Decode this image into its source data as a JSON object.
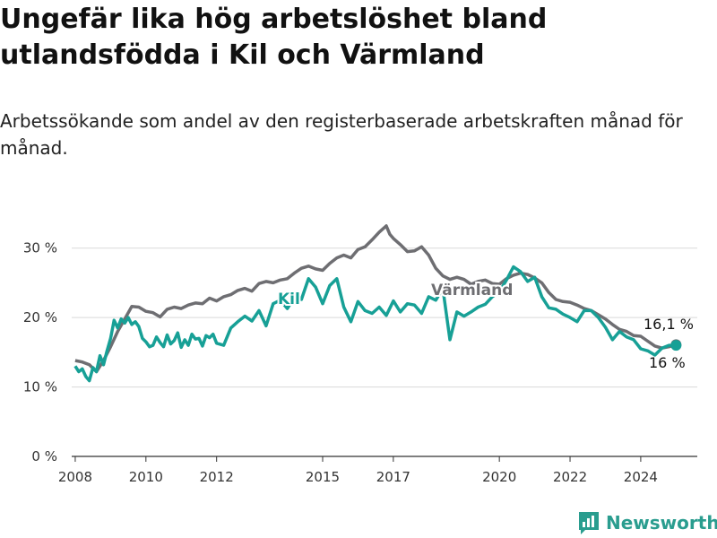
{
  "title": "Ungefär lika hög arbetslöshet bland utlandsfödda i Kil och Värmland",
  "subtitle": "Arbetssökande som andel av den registerbaserade arbetskraften månad för månad.",
  "brand": "Newsworthy",
  "colors": {
    "kil": "#17a096",
    "varmland": "#6e6e72",
    "grid": "#d9d9d9",
    "axis": "#333333"
  },
  "chart_data": {
    "type": "line",
    "title": "Ungefär lika hög arbetslöshet bland utlandsfödda i Kil och Värmland",
    "subtitle": "Arbetssökande som andel av den registerbaserade arbetskraften månad för månad.",
    "xlabel": "",
    "ylabel": "",
    "xlim": [
      2007.9,
      2025.6
    ],
    "ylim": [
      0,
      35
    ],
    "grid": true,
    "x_ticks": [
      2008,
      2010,
      2012,
      2015,
      2017,
      2020,
      2022,
      2024
    ],
    "y_ticks": [
      {
        "value": 0,
        "label": "0 %"
      },
      {
        "value": 10,
        "label": "10 %"
      },
      {
        "value": 20,
        "label": "20 %"
      },
      {
        "value": 30,
        "label": "30 %"
      }
    ],
    "series": [
      {
        "name": "Kil",
        "end_label": "16 %",
        "x": [
          2008.0,
          2008.1,
          2008.2,
          2008.3,
          2008.4,
          2008.5,
          2008.6,
          2008.7,
          2008.8,
          2008.9,
          2009.0,
          2009.1,
          2009.2,
          2009.3,
          2009.4,
          2009.5,
          2009.6,
          2009.7,
          2009.8,
          2009.9,
          2010.0,
          2010.1,
          2010.2,
          2010.3,
          2010.4,
          2010.5,
          2010.6,
          2010.7,
          2010.8,
          2010.9,
          2011.0,
          2011.1,
          2011.2,
          2011.3,
          2011.4,
          2011.5,
          2011.6,
          2011.7,
          2011.8,
          2011.9,
          2012.0,
          2012.2,
          2012.4,
          2012.6,
          2012.8,
          2013.0,
          2013.2,
          2013.4,
          2013.6,
          2013.8,
          2014.0,
          2014.2,
          2014.4,
          2014.6,
          2014.8,
          2015.0,
          2015.2,
          2015.4,
          2015.6,
          2015.8,
          2016.0,
          2016.2,
          2016.4,
          2016.6,
          2016.8,
          2017.0,
          2017.2,
          2017.4,
          2017.6,
          2017.8,
          2018.0,
          2018.2,
          2018.4,
          2018.6,
          2018.8,
          2019.0,
          2019.2,
          2019.4,
          2019.6,
          2019.8,
          2020.0,
          2020.2,
          2020.4,
          2020.6,
          2020.8,
          2021.0,
          2021.2,
          2021.4,
          2021.6,
          2021.8,
          2022.0,
          2022.2,
          2022.4,
          2022.6,
          2022.8,
          2023.0,
          2023.2,
          2023.4,
          2023.6,
          2023.8,
          2024.0,
          2024.2,
          2024.4,
          2024.6,
          2024.8,
          2025.0
        ],
        "y": [
          13.0,
          12.2,
          12.6,
          11.5,
          10.9,
          12.8,
          12.2,
          14.5,
          13.2,
          15.2,
          17.0,
          19.6,
          18.5,
          19.8,
          19.2,
          20.0,
          19.0,
          19.4,
          18.7,
          17.0,
          16.5,
          15.8,
          16.0,
          17.2,
          16.4,
          15.8,
          17.5,
          16.2,
          16.7,
          17.8,
          15.7,
          16.8,
          16.0,
          17.6,
          16.9,
          17.0,
          15.9,
          17.4,
          17.1,
          17.6,
          16.3,
          16.0,
          18.5,
          19.4,
          20.2,
          19.5,
          21.0,
          18.8,
          22.0,
          22.5,
          21.3,
          22.9,
          22.6,
          25.6,
          24.4,
          22.0,
          24.6,
          25.6,
          21.5,
          19.4,
          22.3,
          21.0,
          20.6,
          21.5,
          20.3,
          22.4,
          20.8,
          22.0,
          21.8,
          20.6,
          23.0,
          22.5,
          24.2,
          16.8,
          20.8,
          20.2,
          20.8,
          21.5,
          21.9,
          23.0,
          23.7,
          25.4,
          27.3,
          26.6,
          25.2,
          25.8,
          23.0,
          21.4,
          21.2,
          20.5,
          20.0,
          19.4,
          21.0,
          21.0,
          20.0,
          18.6,
          16.8,
          18.0,
          17.2,
          16.8,
          15.5,
          15.2,
          14.6,
          15.6,
          16.0,
          16.0
        ]
      },
      {
        "name": "Värmland",
        "end_label": "16,1 %",
        "x": [
          2008.0,
          2008.2,
          2008.4,
          2008.6,
          2008.8,
          2009.0,
          2009.2,
          2009.4,
          2009.6,
          2009.8,
          2010.0,
          2010.2,
          2010.4,
          2010.6,
          2010.8,
          2011.0,
          2011.2,
          2011.4,
          2011.6,
          2011.8,
          2012.0,
          2012.2,
          2012.4,
          2012.6,
          2012.8,
          2013.0,
          2013.2,
          2013.4,
          2013.6,
          2013.8,
          2014.0,
          2014.2,
          2014.4,
          2014.6,
          2014.8,
          2015.0,
          2015.2,
          2015.4,
          2015.6,
          2015.8,
          2016.0,
          2016.2,
          2016.4,
          2016.6,
          2016.8,
          2016.9,
          2017.0,
          2017.2,
          2017.4,
          2017.6,
          2017.8,
          2018.0,
          2018.2,
          2018.4,
          2018.6,
          2018.8,
          2019.0,
          2019.2,
          2019.4,
          2019.6,
          2019.8,
          2020.0,
          2020.2,
          2020.4,
          2020.6,
          2020.8,
          2021.0,
          2021.2,
          2021.4,
          2021.6,
          2021.8,
          2022.0,
          2022.2,
          2022.4,
          2022.6,
          2022.8,
          2023.0,
          2023.2,
          2023.4,
          2023.6,
          2023.8,
          2024.0,
          2024.2,
          2024.4,
          2024.6,
          2024.8,
          2025.0
        ],
        "y": [
          13.8,
          13.6,
          13.2,
          12.2,
          13.8,
          15.8,
          18.0,
          19.8,
          21.6,
          21.5,
          20.9,
          20.7,
          20.1,
          21.2,
          21.5,
          21.3,
          21.8,
          22.1,
          22.0,
          22.8,
          22.4,
          23.0,
          23.3,
          23.9,
          24.2,
          23.8,
          24.9,
          25.2,
          25.0,
          25.4,
          25.6,
          26.4,
          27.1,
          27.4,
          27.0,
          26.8,
          27.8,
          28.6,
          29.0,
          28.6,
          29.8,
          30.2,
          31.2,
          32.3,
          33.2,
          32.0,
          31.4,
          30.5,
          29.5,
          29.6,
          30.2,
          29.0,
          27.1,
          26.0,
          25.5,
          25.8,
          25.5,
          24.8,
          25.2,
          25.4,
          24.9,
          24.8,
          25.6,
          26.1,
          26.4,
          26.2,
          25.7,
          25.0,
          23.6,
          22.6,
          22.3,
          22.2,
          21.8,
          21.3,
          21.0,
          20.4,
          19.8,
          19.0,
          18.3,
          18.0,
          17.4,
          17.3,
          16.6,
          15.9,
          15.6,
          15.8,
          16.1
        ]
      }
    ]
  }
}
